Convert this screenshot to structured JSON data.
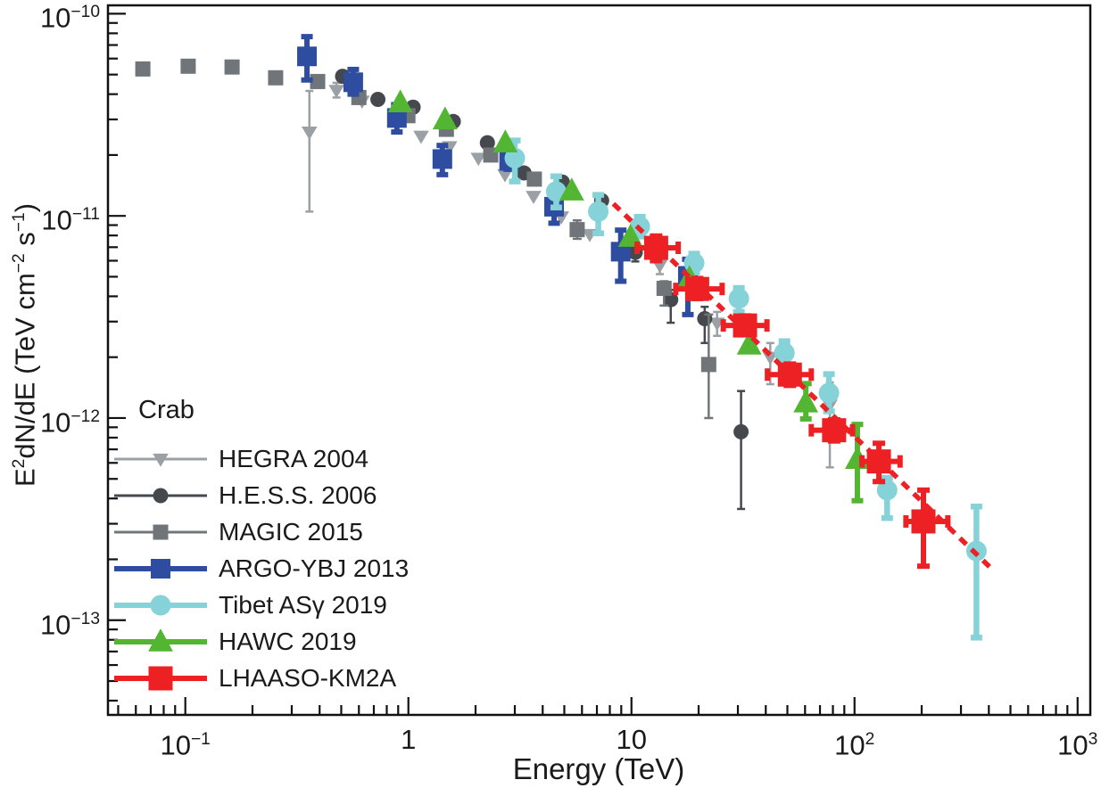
{
  "chart_data": {
    "type": "scatter",
    "annotation": "Crab",
    "xlabel": "Energy (TeV)",
    "ylabel_plain": "E^2dN/dE (TeV cm^-2 s^-1)",
    "ylabel_parts": [
      [
        "E",
        ""
      ],
      [
        "2",
        "sup"
      ],
      [
        "dN/dE (TeV cm",
        ""
      ],
      [
        "−2",
        "sup"
      ],
      [
        " s",
        ""
      ],
      [
        "−1",
        "sup"
      ],
      [
        ")",
        ""
      ]
    ],
    "axes": {
      "x": {
        "scale": "log",
        "min": 0.045,
        "max": 1140,
        "ticks": [
          {
            "value": 0.1,
            "label": "10",
            "sup": "−1"
          },
          {
            "value": 1,
            "label": "1",
            "sup": ""
          },
          {
            "value": 10,
            "label": "10",
            "sup": ""
          },
          {
            "value": 100,
            "label": "10",
            "sup": "2"
          },
          {
            "value": 1000,
            "label": "10",
            "sup": "3"
          }
        ]
      },
      "y": {
        "scale": "log",
        "min": 3.4e-14,
        "max": 1.1e-10,
        "ticks": [
          {
            "value": 1e-10,
            "label": "10",
            "sup": "−10"
          },
          {
            "value": 1e-11,
            "label": "10",
            "sup": "−11"
          },
          {
            "value": 1e-12,
            "label": "10",
            "sup": "−12"
          },
          {
            "value": 1e-13,
            "label": "10",
            "sup": "−13"
          }
        ]
      }
    },
    "fit_line": {
      "name": "LHAASO-KM2A fit",
      "color": "#ed2024",
      "dash": "10 8",
      "width": 5.5,
      "x_from": 8.3,
      "x_to": 420,
      "anchor_x": 20,
      "anchor_y": 4.5e-12,
      "slope": -1.065
    },
    "series": [
      {
        "name": "HEGRA 2004",
        "marker": "triangle-down",
        "color": "#9ba0a5",
        "size": 16,
        "err_lw": 2.5,
        "cap": 9,
        "points": [
          {
            "x": 0.36,
            "y": 2.6e-11,
            "ylo": 1.05e-11,
            "yhi": 4.15e-11
          },
          {
            "x": 0.476,
            "y": 4.18e-11,
            "ylo": 3.85e-11,
            "yhi": 4.55e-11
          },
          {
            "x": 0.62,
            "y": 3.7e-11
          },
          {
            "x": 1.14,
            "y": 2.48e-11
          },
          {
            "x": 1.53,
            "y": 2.2e-11
          },
          {
            "x": 2.06,
            "y": 1.93e-11
          },
          {
            "x": 2.71,
            "y": 1.6e-11
          },
          {
            "x": 3.64,
            "y": 1.25e-11
          },
          {
            "x": 4.85,
            "y": 9.9e-12
          },
          {
            "x": 6.5,
            "y": 8.1e-12
          },
          {
            "x": 13.4,
            "y": 5.7e-12,
            "ylo": 5.15e-12,
            "yhi": 6.3e-12
          },
          {
            "x": 24.2,
            "y": 2.95e-12,
            "ylo": 2.55e-12,
            "yhi": 3.35e-12
          },
          {
            "x": 41.9,
            "y": 2e-12,
            "ylo": 1.47e-12,
            "yhi": 2.35e-12
          },
          {
            "x": 77.5,
            "y": 1.16e-12,
            "ylo": 5.7e-13,
            "yhi": 1.5e-12
          }
        ]
      },
      {
        "name": "H.E.S.S. 2006",
        "marker": "circle",
        "color": "#45494e",
        "size": 17,
        "err_lw": 2.5,
        "cap": 9,
        "points": [
          {
            "x": 0.507,
            "y": 4.9e-11
          },
          {
            "x": 0.73,
            "y": 3.77e-11
          },
          {
            "x": 1.05,
            "y": 3.45e-11
          },
          {
            "x": 1.59,
            "y": 2.93e-11
          },
          {
            "x": 2.26,
            "y": 2.3e-11
          },
          {
            "x": 3.3,
            "y": 1.63e-11
          },
          {
            "x": 4.9,
            "y": 1.47e-11
          },
          {
            "x": 7.35,
            "y": 1.19e-11
          },
          {
            "x": 10.4,
            "y": 6.6e-12,
            "ylo": 5.95e-12,
            "yhi": 7.3e-12
          },
          {
            "x": 15.0,
            "y": 3.85e-12,
            "ylo": 2.96e-12,
            "yhi": 4.3e-12
          },
          {
            "x": 21.3,
            "y": 3.1e-12,
            "ylo": 2.35e-12,
            "yhi": 3.55e-12
          },
          {
            "x": 31.0,
            "y": 8.55e-13,
            "ylo": 3.55e-13,
            "yhi": 1.36e-12
          }
        ]
      },
      {
        "name": "MAGIC 2015",
        "marker": "square",
        "color": "#70757a",
        "size": 17,
        "err_lw": 2.5,
        "cap": 10,
        "points": [
          {
            "x": 0.0645,
            "y": 5.33e-11
          },
          {
            "x": 0.103,
            "y": 5.5e-11
          },
          {
            "x": 0.162,
            "y": 5.45e-11
          },
          {
            "x": 0.254,
            "y": 4.82e-11
          },
          {
            "x": 0.392,
            "y": 4.62e-11
          },
          {
            "x": 0.6,
            "y": 3.85e-11
          },
          {
            "x": 0.995,
            "y": 3.13e-11
          },
          {
            "x": 1.48,
            "y": 2.68e-11
          },
          {
            "x": 2.34,
            "y": 2e-11
          },
          {
            "x": 3.67,
            "y": 1.52e-11
          },
          {
            "x": 5.71,
            "y": 8.55e-12,
            "ylo": 7.7e-12,
            "yhi": 9.5e-12
          },
          {
            "x": 14.0,
            "y": 4.38e-12,
            "ylo": 3.6e-12,
            "yhi": 4.75e-12
          },
          {
            "x": 22.2,
            "y": 1.84e-12,
            "ylo": 1e-12,
            "yhi": 3.25e-12
          }
        ]
      },
      {
        "name": "ARGO-YBJ 2013",
        "marker": "square",
        "color": "#2e4da0",
        "size": 22,
        "err_lw": 6,
        "cap": 13,
        "points": [
          {
            "x": 0.351,
            "y": 6.15e-11,
            "ylo": 4.7e-11,
            "yhi": 7.7e-11
          },
          {
            "x": 0.566,
            "y": 4.58e-11,
            "ylo": 4e-11,
            "yhi": 5.3e-11
          },
          {
            "x": 0.888,
            "y": 3.05e-11,
            "ylo": 2.6e-11,
            "yhi": 3.55e-11
          },
          {
            "x": 1.42,
            "y": 1.91e-11,
            "ylo": 1.6e-11,
            "yhi": 2.23e-11
          },
          {
            "x": 2.83,
            "y": 1.87e-11,
            "ylo": 1.7e-11,
            "yhi": 2.06e-11
          },
          {
            "x": 4.5,
            "y": 1.11e-11,
            "ylo": 9.2e-12,
            "yhi": 1.27e-11
          },
          {
            "x": 8.95,
            "y": 6.65e-12,
            "ylo": 4.75e-12,
            "yhi": 8.5e-12
          },
          {
            "x": 17.9,
            "y": 5.05e-12,
            "ylo": 3.25e-12,
            "yhi": 6.1e-12
          }
        ]
      },
      {
        "name": "Tibet ASγ 2019",
        "marker": "circle",
        "color": "#85d2d8",
        "size": 23,
        "err_lw": 6.5,
        "cap": 13,
        "points": [
          {
            "x": 3.0,
            "y": 1.93e-11,
            "ylo": 1.48e-11,
            "yhi": 2.36e-11
          },
          {
            "x": 4.6,
            "y": 1.32e-11,
            "ylo": 1.1e-11,
            "yhi": 1.57e-11
          },
          {
            "x": 7.1,
            "y": 1.05e-11,
            "ylo": 8.2e-12,
            "yhi": 1.27e-11
          },
          {
            "x": 10.9,
            "y": 8.85e-12,
            "ylo": 7.9e-12,
            "yhi": 9.9e-12
          },
          {
            "x": 19.1,
            "y": 5.85e-12,
            "ylo": 5.25e-12,
            "yhi": 6.5e-12
          },
          {
            "x": 30.3,
            "y": 3.9e-12,
            "ylo": 3.35e-12,
            "yhi": 4.4e-12
          },
          {
            "x": 48.5,
            "y": 2.1e-12,
            "ylo": 1.8e-12,
            "yhi": 2.4e-12
          },
          {
            "x": 76.8,
            "y": 1.33e-12,
            "ylo": 1.08e-12,
            "yhi": 1.65e-12
          },
          {
            "x": 140,
            "y": 4.4e-13,
            "ylo": 3.2e-13,
            "yhi": 5.05e-13
          },
          {
            "x": 352,
            "y": 2.2e-13,
            "ylo": 8.2e-14,
            "yhi": 3.65e-13
          }
        ]
      },
      {
        "name": "HAWC 2019",
        "marker": "triangle-up",
        "color": "#53b633",
        "size": 24,
        "err_lw": 6,
        "cap": 13,
        "points": [
          {
            "x": 0.92,
            "y": 3.63e-11
          },
          {
            "x": 1.46,
            "y": 2.99e-11
          },
          {
            "x": 2.72,
            "y": 2.3e-11
          },
          {
            "x": 5.4,
            "y": 1.33e-11
          },
          {
            "x": 9.9,
            "y": 7.85e-12
          },
          {
            "x": 18.2,
            "y": 4.9e-12
          },
          {
            "x": 33.7,
            "y": 2.3e-12
          },
          {
            "x": 60.5,
            "y": 1.19e-12,
            "ylo": 9.9e-13,
            "yhi": 1.48e-12
          },
          {
            "x": 103,
            "y": 6.25e-13,
            "ylo": 3.9e-13,
            "yhi": 9.3e-13
          }
        ]
      },
      {
        "name": "LHAASO-KM2A",
        "marker": "square",
        "color": "#ed2024",
        "size": 27,
        "err_lw": 6,
        "cap": 14,
        "points": [
          {
            "x": 12.9,
            "y": 6.95e-12,
            "xlo": 10.6,
            "xhi": 16.2,
            "ylo": 6e-12,
            "yhi": 7.95e-12
          },
          {
            "x": 19.7,
            "y": 4.35e-12,
            "xlo": 15.8,
            "xhi": 25.5,
            "ylo": 3.9e-12,
            "yhi": 4.9e-12
          },
          {
            "x": 32.3,
            "y": 2.87e-12,
            "xlo": 25.8,
            "xhi": 40.5,
            "ylo": 2.6e-12,
            "yhi": 3.2e-12
          },
          {
            "x": 51.3,
            "y": 1.64e-12,
            "xlo": 40.7,
            "xhi": 64,
            "ylo": 1.45e-12,
            "yhi": 1.85e-12
          },
          {
            "x": 81,
            "y": 8.7e-13,
            "xlo": 64,
            "xhi": 98,
            "ylo": 7.7e-13,
            "yhi": 9.8e-13
          },
          {
            "x": 128.6,
            "y": 6.1e-13,
            "xlo": 108,
            "xhi": 160,
            "ylo": 4.85e-13,
            "yhi": 7.5e-13
          },
          {
            "x": 203.7,
            "y": 3.08e-13,
            "xlo": 170,
            "xhi": 262,
            "ylo": 1.85e-13,
            "yhi": 4.4e-13
          }
        ]
      }
    ],
    "legend_position": "bottom-left-inside",
    "grid": false
  },
  "frame_color": "#111111"
}
